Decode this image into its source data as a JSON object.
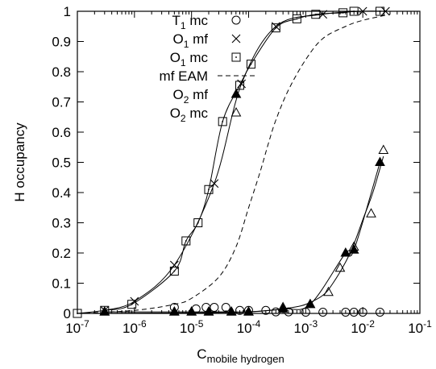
{
  "chart_data": {
    "type": "scatter",
    "title": "",
    "xlabel_main": "C",
    "xlabel_sub": "mobile hydrogen",
    "ylabel": "H occupancy",
    "xscale": "log",
    "xlim": [
      1e-07,
      0.1
    ],
    "ylim": [
      0,
      1
    ],
    "grid": false,
    "legend_position": "top-left",
    "x_ticks": [
      {
        "value": 1e-07,
        "base": "10",
        "exp": "-7"
      },
      {
        "value": 1e-06,
        "base": "10",
        "exp": "-6"
      },
      {
        "value": 1e-05,
        "base": "10",
        "exp": "-5"
      },
      {
        "value": 0.0001,
        "base": "10",
        "exp": "-4"
      },
      {
        "value": 0.001,
        "base": "10",
        "exp": "-3"
      },
      {
        "value": 0.01,
        "base": "10",
        "exp": "-2"
      },
      {
        "value": 0.1,
        "base": "10",
        "exp": "-1"
      }
    ],
    "y_ticks": [
      {
        "value": 0,
        "label": "0"
      },
      {
        "value": 0.1,
        "label": "0.1"
      },
      {
        "value": 0.2,
        "label": "0.2"
      },
      {
        "value": 0.3,
        "label": "0.3"
      },
      {
        "value": 0.4,
        "label": "0.4"
      },
      {
        "value": 0.5,
        "label": "0.5"
      },
      {
        "value": 0.6,
        "label": "0.6"
      },
      {
        "value": 0.7,
        "label": "0.7"
      },
      {
        "value": 0.8,
        "label": "0.8"
      },
      {
        "value": 0.9,
        "label": "0.9"
      },
      {
        "value": 1,
        "label": "1"
      }
    ],
    "series": [
      {
        "id": "t1-mc",
        "name_main": "T",
        "name_sub": "1",
        "name_rest": " mc",
        "marker": "circle",
        "line": "none",
        "x": [
          5e-06,
          1.2e-05,
          1.8e-05,
          2.5e-05,
          4e-05,
          7e-05,
          0.0001,
          0.0002,
          0.0003,
          0.0005,
          0.001,
          0.002,
          0.005,
          0.007,
          0.01,
          0.02
        ],
        "y": [
          0.02,
          0.015,
          0.02,
          0.02,
          0.02,
          0.01,
          0.01,
          0.01,
          0.005,
          0.005,
          0.004,
          0.004,
          0.004,
          0.004,
          0.004,
          0.004
        ]
      },
      {
        "id": "o1-mf",
        "name_main": "O",
        "name_sub": "1",
        "name_rest": " mf",
        "marker": "cross",
        "line": "solid",
        "x": [
          3e-07,
          1e-06,
          5e-06,
          2.5e-05,
          7.5e-05,
          0.0003,
          0.002,
          0.01,
          0.025
        ],
        "y": [
          0.01,
          0.04,
          0.16,
          0.43,
          0.76,
          0.95,
          0.99,
          1.0,
          1.0
        ]
      },
      {
        "id": "o1-mc",
        "name_main": "O",
        "name_sub": "1",
        "name_rest": " mc",
        "marker": "square",
        "line": "solid",
        "x": [
          1e-07,
          3e-07,
          9e-07,
          5e-06,
          8e-06,
          1.3e-05,
          2e-05,
          3.5e-05,
          7e-05,
          0.00011,
          0.0003,
          0.0007,
          0.0015,
          0.0045,
          0.007,
          0.02
        ],
        "y": [
          0.0,
          0.01,
          0.03,
          0.14,
          0.24,
          0.3,
          0.41,
          0.635,
          0.755,
          0.825,
          0.945,
          0.975,
          0.99,
          0.995,
          1.0,
          1.0
        ]
      },
      {
        "id": "mf-eam",
        "name_main": "mf EAM",
        "name_sub": "",
        "name_rest": "",
        "marker": "none",
        "line": "dashed",
        "x": [
          1e-07,
          1e-06,
          5e-06,
          1e-05,
          3e-05,
          6e-05,
          0.0001,
          0.00016,
          0.00022,
          0.0003,
          0.0005,
          0.001,
          0.002,
          0.005,
          0.01,
          0.03
        ],
        "y": [
          0.0,
          0.01,
          0.03,
          0.05,
          0.12,
          0.22,
          0.35,
          0.47,
          0.56,
          0.64,
          0.74,
          0.84,
          0.91,
          0.95,
          0.97,
          0.99
        ]
      },
      {
        "id": "o2-mf",
        "name_main": "O",
        "name_sub": "2",
        "name_rest": " mf",
        "marker": "triangle-filled",
        "line": "solid",
        "x": [
          3e-07,
          5e-06,
          1e-05,
          2e-05,
          5e-05,
          0.0001,
          0.0004,
          0.0012,
          0.005,
          0.007,
          0.02
        ],
        "y": [
          0.005,
          0.005,
          0.005,
          0.005,
          0.005,
          0.005,
          0.015,
          0.03,
          0.2,
          0.21,
          0.5
        ]
      },
      {
        "id": "o2-mc",
        "name_main": "O",
        "name_sub": "2",
        "name_rest": " mc",
        "marker": "triangle-open",
        "line": "none",
        "x": [
          3e-07,
          5e-06,
          1e-05,
          2e-05,
          5e-05,
          0.0001,
          0.0004,
          0.0012,
          0.0025,
          0.004,
          0.007,
          0.014,
          0.023
        ],
        "y": [
          0.005,
          0.005,
          0.005,
          0.005,
          0.005,
          0.005,
          0.02,
          0.03,
          0.07,
          0.15,
          0.22,
          0.33,
          0.54
        ]
      }
    ],
    "o2_fit": {
      "x": [
        1e-07,
        1e-05,
        0.0001,
        0.0003,
        0.0006,
        0.001,
        0.002,
        0.003,
        0.005,
        0.007,
        0.01,
        0.015,
        0.023
      ],
      "y": [
        0.0,
        0.002,
        0.005,
        0.012,
        0.02,
        0.03,
        0.06,
        0.1,
        0.17,
        0.23,
        0.31,
        0.4,
        0.52
      ]
    }
  }
}
